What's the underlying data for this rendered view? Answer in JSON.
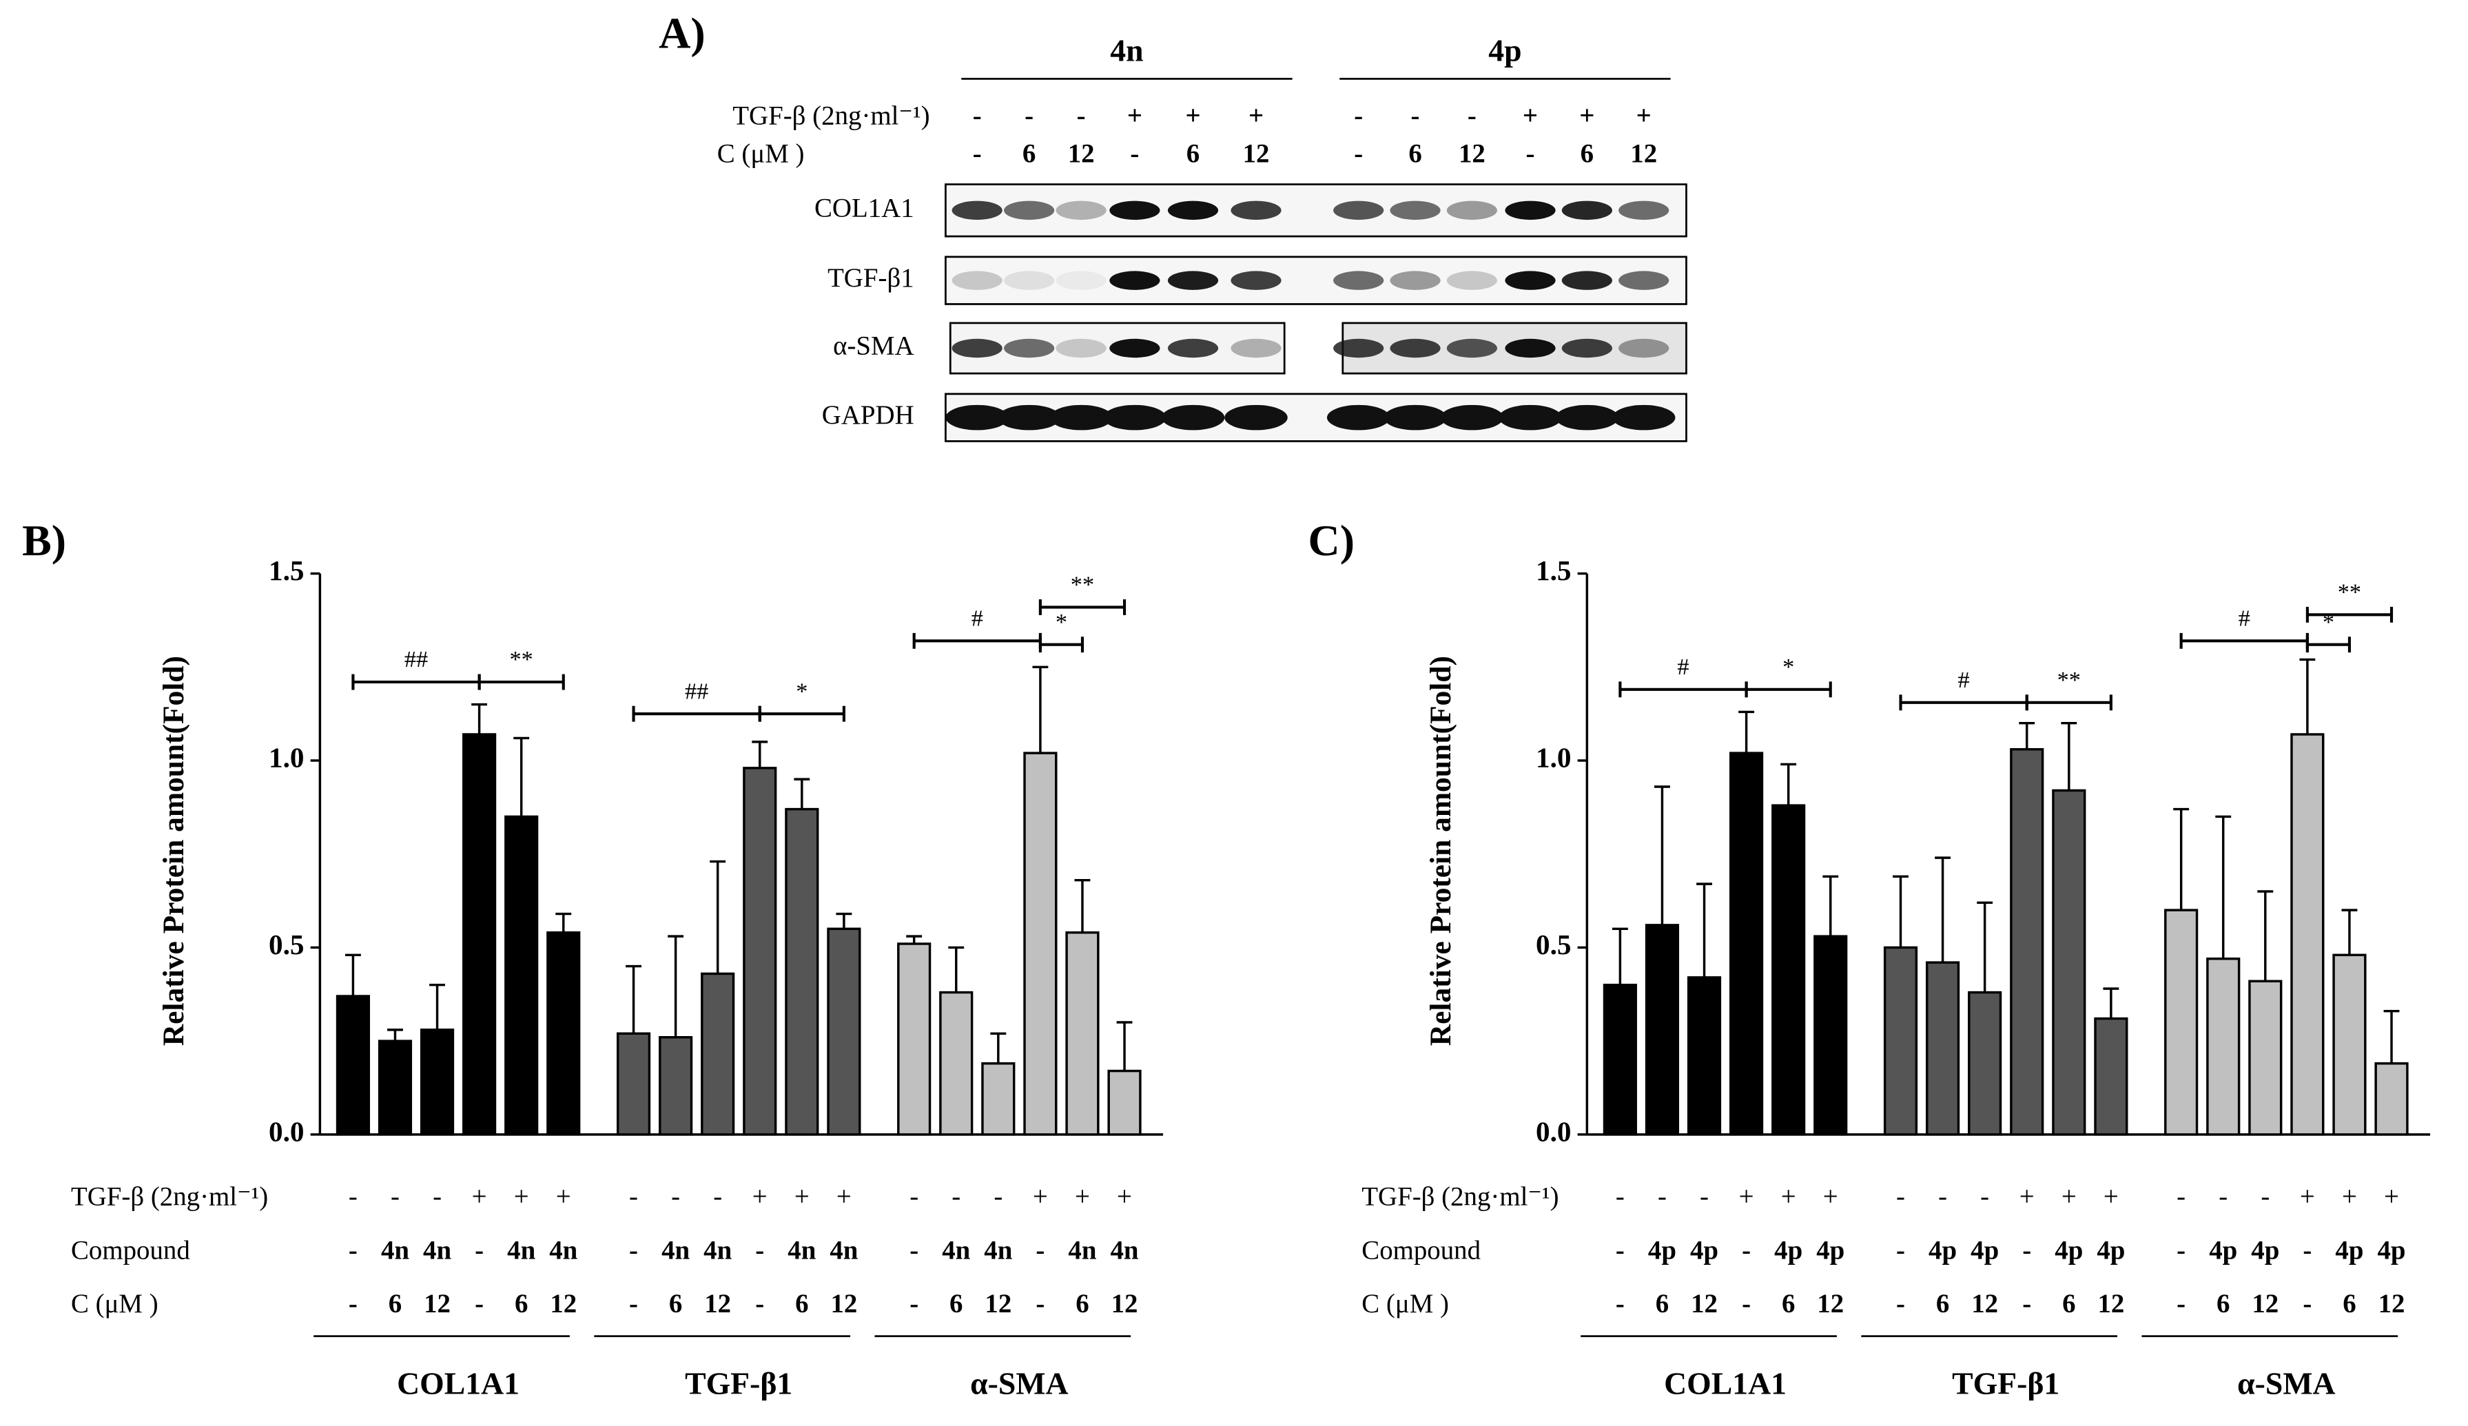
{
  "blot": {
    "label": "A)",
    "groups": [
      "4n",
      "4p"
    ],
    "row_labels": [
      "TGF-β (2ng·ml⁻¹)",
      "C (μM )"
    ],
    "tgf": [
      "-",
      "-",
      "-",
      "+",
      "+",
      "+"
    ],
    "conc": [
      "-",
      "6",
      "12",
      "-",
      "6",
      "12"
    ],
    "bands": [
      "COL1A1",
      "TGF-β1",
      "α-SMA",
      "GAPDH"
    ]
  },
  "chart_data": [
    {
      "type": "bar",
      "panel_label": "B)",
      "y_label": "Relative Protein amount(Fold)",
      "ylim": [
        0,
        1.5
      ],
      "yticks": [
        {
          "value": 0,
          "label": "0.0"
        },
        0.5,
        {
          "value": 1,
          "label": "1.0"
        },
        1.5
      ],
      "row_labels": [
        "TGF-β (2ng·ml⁻¹)",
        "Compound",
        "C (μM )"
      ],
      "rows": [
        [
          "-",
          "-",
          "-",
          "+",
          "+",
          "+"
        ],
        [
          "-",
          "4n",
          "4n",
          "-",
          "4n",
          "4n"
        ],
        [
          "-",
          "6",
          "12",
          "-",
          "6",
          "12"
        ]
      ],
      "series": [
        {
          "name": "COL1A1",
          "color": "#000000",
          "values": [
            0.37,
            0.25,
            0.28,
            1.07,
            0.85,
            0.54
          ],
          "errors": [
            0.11,
            0.03,
            0.12,
            0.08,
            0.21,
            0.05
          ]
        },
        {
          "name": "TGF-β1",
          "color": "#555555",
          "values": [
            0.27,
            0.26,
            0.43,
            0.98,
            0.87,
            0.55
          ],
          "errors": [
            0.18,
            0.27,
            0.3,
            0.07,
            0.08,
            0.04
          ]
        },
        {
          "name": "α-SMA",
          "color": "#c0c0c0",
          "values": [
            0.51,
            0.38,
            0.19,
            1.02,
            0.54,
            0.17
          ],
          "errors": [
            0.02,
            0.12,
            0.08,
            0.23,
            0.14,
            0.13
          ]
        }
      ],
      "annotations": [
        {
          "text": "##",
          "series": 0,
          "from": 0,
          "to": 3,
          "y": 1.21
        },
        {
          "text": "**",
          "series": 0,
          "from": 3,
          "to": 5,
          "y": 1.21
        },
        {
          "text": "##",
          "series": 1,
          "from": 0,
          "to": 3,
          "y": 1.125
        },
        {
          "text": "*",
          "series": 1,
          "from": 3,
          "to": 5,
          "y": 1.125
        },
        {
          "text": "#",
          "series": 2,
          "from": 0,
          "to": 3,
          "y": 1.32
        },
        {
          "text": "*",
          "series": 2,
          "from": 3,
          "to": 4,
          "y": 1.31
        },
        {
          "text": "**",
          "series": 2,
          "from": 3,
          "to": 5,
          "y": 1.41
        }
      ]
    },
    {
      "type": "bar",
      "panel_label": "C)",
      "y_label": "Relative Protein amount(Fold)",
      "ylim": [
        0,
        1.5
      ],
      "yticks": [
        {
          "value": 0,
          "label": "0.0"
        },
        0.5,
        {
          "value": 1,
          "label": "1.0"
        },
        1.5
      ],
      "row_labels": [
        "TGF-β (2ng·ml⁻¹)",
        "Compound",
        "C (μM )"
      ],
      "rows": [
        [
          "-",
          "-",
          "-",
          "+",
          "+",
          "+"
        ],
        [
          "-",
          "4p",
          "4p",
          "-",
          "4p",
          "4p"
        ],
        [
          "-",
          "6",
          "12",
          "-",
          "6",
          "12"
        ]
      ],
      "series": [
        {
          "name": "COL1A1",
          "color": "#000000",
          "values": [
            0.4,
            0.56,
            0.42,
            1.02,
            0.88,
            0.53
          ],
          "errors": [
            0.15,
            0.37,
            0.25,
            0.11,
            0.11,
            0.16
          ]
        },
        {
          "name": "TGF-β1",
          "color": "#555555",
          "values": [
            0.5,
            0.46,
            0.38,
            1.03,
            0.92,
            0.31
          ],
          "errors": [
            0.19,
            0.28,
            0.24,
            0.07,
            0.18,
            0.08
          ]
        },
        {
          "name": "α-SMA",
          "color": "#c0c0c0",
          "values": [
            0.6,
            0.47,
            0.41,
            1.07,
            0.48,
            0.19
          ],
          "errors": [
            0.27,
            0.38,
            0.24,
            0.2,
            0.12,
            0.14
          ]
        }
      ],
      "annotations": [
        {
          "text": "#",
          "series": 0,
          "from": 0,
          "to": 3,
          "y": 1.19
        },
        {
          "text": "*",
          "series": 0,
          "from": 3,
          "to": 5,
          "y": 1.19
        },
        {
          "text": "#",
          "series": 1,
          "from": 0,
          "to": 3,
          "y": 1.155
        },
        {
          "text": "**",
          "series": 1,
          "from": 3,
          "to": 5,
          "y": 1.155
        },
        {
          "text": "#",
          "series": 2,
          "from": 0,
          "to": 3,
          "y": 1.32
        },
        {
          "text": "*",
          "series": 2,
          "from": 3,
          "to": 4,
          "y": 1.31
        },
        {
          "text": "**",
          "series": 2,
          "from": 3,
          "to": 5,
          "y": 1.39
        }
      ]
    }
  ]
}
